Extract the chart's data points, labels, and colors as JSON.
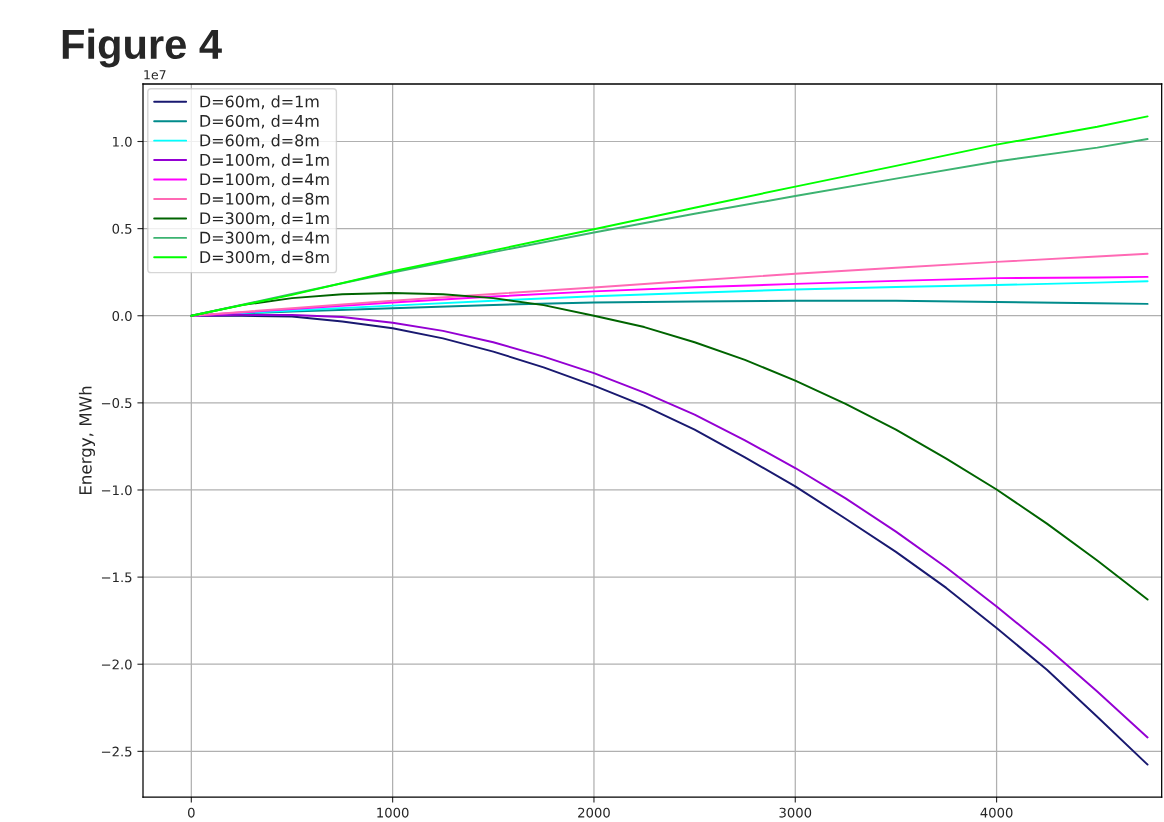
{
  "chart_data": {
    "type": "line",
    "title": "Figure 4",
    "ylabel": "Energy, MWh",
    "annotations": [
      "1e7"
    ],
    "series": [
      {
        "name": "D=60m, d=1m",
        "color": "#191970",
        "x": [
          0,
          250,
          500,
          750,
          1000,
          1250,
          1500,
          1750,
          2000,
          2250,
          2500,
          2750,
          3000,
          3250,
          3500,
          3750,
          4000,
          4250,
          4500,
          4750
        ],
        "values": [
          0,
          0,
          -0.004,
          -0.033,
          -0.072,
          -0.13,
          -0.206,
          -0.296,
          -0.401,
          -0.517,
          -0.654,
          -0.813,
          -0.979,
          -1.165,
          -1.355,
          -1.562,
          -1.792,
          -2.032,
          -2.301,
          -2.576
        ]
      },
      {
        "name": "D=60m, d=4m",
        "color": "#008b8b",
        "x": [
          0,
          500,
          1000,
          1500,
          2000,
          2500,
          3000,
          3500,
          4000,
          4500,
          4750
        ],
        "values": [
          0,
          0.024,
          0.043,
          0.062,
          0.076,
          0.082,
          0.086,
          0.086,
          0.079,
          0.072,
          0.068
        ]
      },
      {
        "name": "D=60m, d=8m",
        "color": "#00ffff",
        "x": [
          0,
          500,
          1000,
          1500,
          2000,
          2500,
          3000,
          3500,
          4000,
          4500,
          4750
        ],
        "values": [
          0,
          0.03,
          0.058,
          0.086,
          0.112,
          0.132,
          0.151,
          0.165,
          0.176,
          0.19,
          0.198
        ]
      },
      {
        "name": "D=100m, d=1m",
        "color": "#9400d3",
        "x": [
          0,
          250,
          500,
          750,
          1000,
          1250,
          1500,
          1750,
          2000,
          2250,
          2500,
          2750,
          3000,
          3250,
          3500,
          3750,
          4000,
          4250,
          4500,
          4750
        ],
        "values": [
          0,
          0.005,
          0.004,
          -0.007,
          -0.04,
          -0.087,
          -0.152,
          -0.235,
          -0.329,
          -0.441,
          -0.568,
          -0.715,
          -0.874,
          -1.048,
          -1.239,
          -1.445,
          -1.669,
          -1.904,
          -2.157,
          -2.42
        ]
      },
      {
        "name": "D=100m, d=4m",
        "color": "#ff00ff",
        "x": [
          0,
          500,
          1000,
          1500,
          2000,
          2500,
          3000,
          3500,
          4000,
          4500,
          4750
        ],
        "values": [
          0,
          0.038,
          0.076,
          0.11,
          0.14,
          0.163,
          0.183,
          0.2,
          0.216,
          0.22,
          0.223
        ]
      },
      {
        "name": "D=100m, d=8m",
        "color": "#ff69b4",
        "x": [
          0,
          500,
          1000,
          1500,
          2000,
          2500,
          3000,
          3500,
          4000,
          4500,
          4750
        ],
        "values": [
          0,
          0.043,
          0.086,
          0.125,
          0.162,
          0.202,
          0.241,
          0.275,
          0.309,
          0.34,
          0.356
        ]
      },
      {
        "name": "D=300m, d=1m",
        "color": "#006400",
        "x": [
          0,
          250,
          500,
          750,
          1000,
          1250,
          1500,
          1750,
          2000,
          2250,
          2500,
          2750,
          3000,
          3250,
          3500,
          3750,
          4000,
          4250,
          4500,
          4750
        ],
        "values": [
          0,
          0.061,
          0.101,
          0.123,
          0.13,
          0.123,
          0.101,
          0.061,
          0,
          -0.065,
          -0.152,
          -0.253,
          -0.372,
          -0.506,
          -0.654,
          -0.82,
          -0.997,
          -1.193,
          -1.405,
          -1.629
        ]
      },
      {
        "name": "D=300m, d=4m",
        "color": "#3cb371",
        "x": [
          0,
          500,
          1000,
          1500,
          2000,
          2500,
          3000,
          3500,
          4000,
          4500,
          4750
        ],
        "values": [
          0,
          0.125,
          0.248,
          0.365,
          0.478,
          0.585,
          0.687,
          0.787,
          0.885,
          0.965,
          1.014
        ]
      },
      {
        "name": "D=300m, d=8m",
        "color": "#00ff00",
        "x": [
          0,
          500,
          1000,
          1500,
          2000,
          2500,
          3000,
          3500,
          4000,
          4500,
          4750
        ],
        "values": [
          0,
          0.12,
          0.255,
          0.375,
          0.496,
          0.62,
          0.741,
          0.86,
          0.982,
          1.085,
          1.144
        ]
      }
    ],
    "xlim": [
      -240,
      4820
    ],
    "xticks": [
      0,
      1000,
      2000,
      3000,
      4000
    ],
    "ylim": [
      -2.762,
      1.33
    ],
    "yticks": [
      {
        "value": -2.5,
        "label": "−2.5"
      },
      {
        "value": -2.0,
        "label": "−2.0"
      },
      {
        "value": -1.5,
        "label": "−1.5"
      },
      {
        "value": -1.0,
        "label": "−1.0"
      },
      {
        "value": -0.5,
        "label": "−0.5"
      },
      {
        "value": 0,
        "label": "0.0"
      },
      {
        "value": 0.5,
        "label": "0.5"
      },
      {
        "value": 1.0,
        "label": "1.0"
      }
    ],
    "grid": true,
    "legend": "top left",
    "marker": "none",
    "line_style": "solid"
  }
}
